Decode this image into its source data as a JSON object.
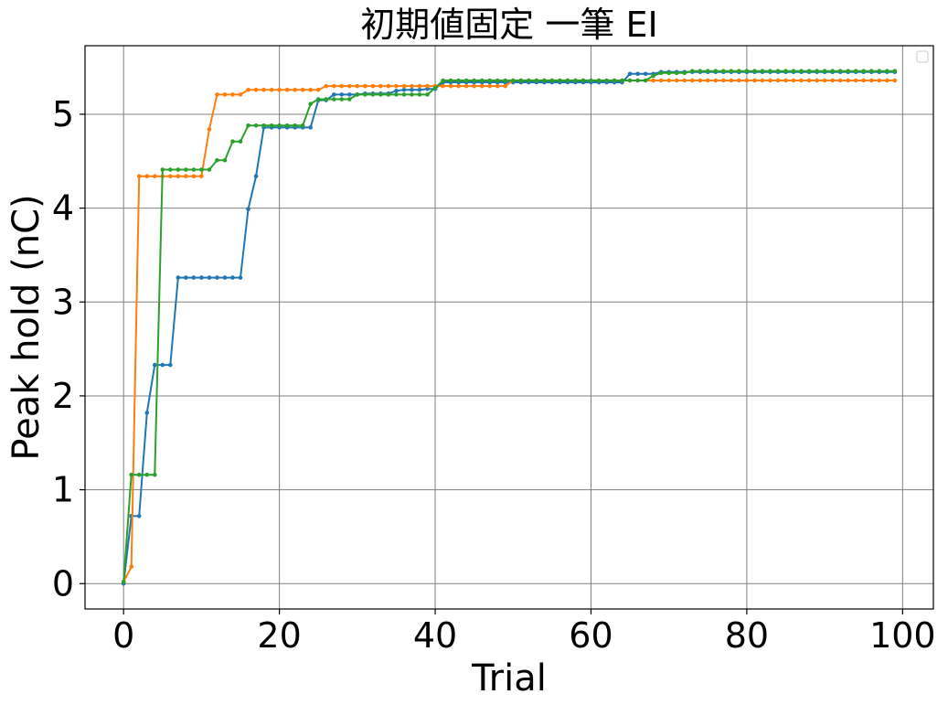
{
  "chart_data": {
    "type": "line",
    "title": "初期値固定 一筆 EI",
    "xlabel": "Trial",
    "ylabel": "Peak hold (nC)",
    "xlim": [
      -4.95,
      103.95
    ],
    "ylim": [
      -0.27,
      5.73
    ],
    "xticks": [
      0,
      20,
      40,
      60,
      80,
      100
    ],
    "yticks": [
      0,
      1,
      2,
      3,
      4,
      5
    ],
    "grid": true,
    "legend": "top-right",
    "markers": true,
    "series": [
      {
        "color": "#1f77b4",
        "steps": [
          [
            0,
            0
          ],
          [
            1,
            0.72
          ],
          [
            3,
            1.82
          ],
          [
            4,
            2.33
          ],
          [
            7,
            3.26
          ],
          [
            16,
            3.99
          ],
          [
            17,
            4.34
          ],
          [
            18,
            4.86
          ],
          [
            25,
            5.15
          ],
          [
            27,
            5.21
          ],
          [
            31,
            5.22
          ],
          [
            35,
            5.25
          ],
          [
            36,
            5.26
          ],
          [
            39,
            5.27
          ],
          [
            41,
            5.34
          ],
          [
            65,
            5.43
          ],
          [
            69,
            5.45
          ]
        ]
      },
      {
        "color": "#ff7f0e",
        "steps": [
          [
            0,
            0.02
          ],
          [
            1,
            0.18
          ],
          [
            2,
            4.34
          ],
          [
            11,
            4.84
          ],
          [
            12,
            5.21
          ],
          [
            16,
            5.26
          ],
          [
            26,
            5.3
          ],
          [
            50,
            5.36
          ]
        ]
      },
      {
        "color": "#2ca02c",
        "steps": [
          [
            0,
            0.02
          ],
          [
            1,
            1.16
          ],
          [
            5,
            4.41
          ],
          [
            12,
            4.51
          ],
          [
            14,
            4.71
          ],
          [
            16,
            4.88
          ],
          [
            24,
            5.11
          ],
          [
            25,
            5.16
          ],
          [
            30,
            5.21
          ],
          [
            40,
            5.28
          ],
          [
            41,
            5.36
          ],
          [
            68,
            5.41
          ],
          [
            69,
            5.44
          ],
          [
            73,
            5.46
          ]
        ]
      }
    ],
    "n_trials": 100
  }
}
